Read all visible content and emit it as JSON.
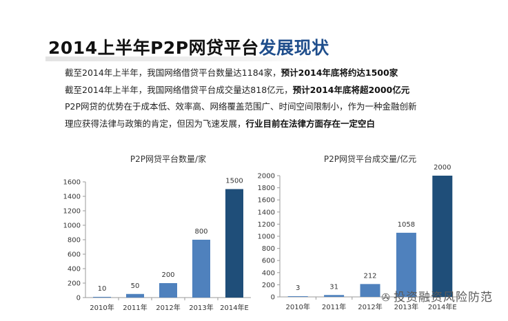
{
  "header": {
    "title_plain": "2014上半年P2P网贷平台",
    "title_accent": "发展现状"
  },
  "bullets": [
    {
      "text": "截至2014年上半年，我国网络借贷平台数量达1184家，",
      "bold": "预计2014年底将约达1500家"
    },
    {
      "text": "截至2014年上半年，我国网络借贷平台成交量达818亿元，",
      "bold": "预计2014年底将超2000亿元"
    },
    {
      "text": "P2P网贷的优势在于成本低、效率高、网络覆盖范围广、时间空间限制小，作为一种金融创新",
      "bold": ""
    },
    {
      "text": "理应获得法律与政策的肯定，但因为飞速发展，",
      "bold": "行业目前在法律方面存在一定空白"
    }
  ],
  "chart_data": [
    {
      "type": "bar",
      "title": "P2P网贷平台数量/家",
      "categories": [
        "2010年",
        "2011年",
        "2012年",
        "2013年",
        "2014年E"
      ],
      "values": [
        10,
        50,
        200,
        800,
        1500
      ],
      "ylim": [
        0,
        1600
      ],
      "yticks": [
        0,
        200,
        400,
        600,
        800,
        1000,
        1200,
        1400,
        1600
      ],
      "colors": [
        "#4f81bd",
        "#4f81bd",
        "#4f81bd",
        "#4f81bd",
        "#1f4e79"
      ],
      "grid": false
    },
    {
      "type": "bar",
      "title": "P2P网贷平台成交量/亿元",
      "categories": [
        "2010年",
        "2011年",
        "2012年",
        "2013年",
        "2014年E"
      ],
      "values": [
        3,
        31,
        212,
        1058,
        2000
      ],
      "ylim": [
        0,
        2000
      ],
      "yticks": [
        0,
        200,
        400,
        600,
        800,
        1000,
        1200,
        1400,
        1600,
        1800,
        2000
      ],
      "colors": [
        "#4f81bd",
        "#4f81bd",
        "#4f81bd",
        "#4f81bd",
        "#1f4e79"
      ],
      "grid": false
    }
  ],
  "watermark": {
    "text": "投资融资风险防范"
  }
}
